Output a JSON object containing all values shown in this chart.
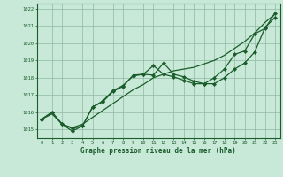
{
  "title": "Graphe pression niveau de la mer (hPa)",
  "background_color": "#c8e8d8",
  "grid_color": "#90b8a0",
  "line_color": "#1a5c2a",
  "x_ticks": [
    0,
    1,
    2,
    3,
    4,
    5,
    6,
    7,
    8,
    9,
    10,
    11,
    12,
    13,
    14,
    15,
    16,
    17,
    18,
    19,
    20,
    21,
    22,
    23
  ],
  "y_min": 1014.5,
  "y_max": 1022.3,
  "y_ticks": [
    1015,
    1016,
    1017,
    1018,
    1019,
    1020,
    1021,
    1022
  ],
  "seriesA": [
    1015.6,
    1015.9,
    1015.3,
    1015.1,
    1015.3,
    1015.7,
    1016.1,
    1016.5,
    1016.9,
    1017.3,
    1017.6,
    1018.0,
    1018.2,
    1018.4,
    1018.5,
    1018.6,
    1018.8,
    1019.0,
    1019.3,
    1019.7,
    1020.1,
    1020.6,
    1021.2,
    1021.7
  ],
  "seriesB": [
    1015.6,
    1016.0,
    1015.3,
    1014.9,
    1015.2,
    1016.3,
    1016.6,
    1017.2,
    1017.5,
    1018.15,
    1018.2,
    1018.15,
    1018.85,
    1018.2,
    1018.05,
    1017.8,
    1017.65,
    1017.65,
    1018.0,
    1018.5,
    1018.85,
    1019.5,
    1020.9,
    1021.5
  ],
  "seriesC": [
    1015.6,
    1016.0,
    1015.3,
    1015.05,
    1015.2,
    1016.3,
    1016.65,
    1017.25,
    1017.55,
    1018.1,
    1018.2,
    1018.7,
    1018.2,
    1018.05,
    1017.85,
    1017.65,
    1017.65,
    1018.0,
    1018.5,
    1019.35,
    1019.55,
    1020.55,
    1020.85,
    1021.75
  ]
}
